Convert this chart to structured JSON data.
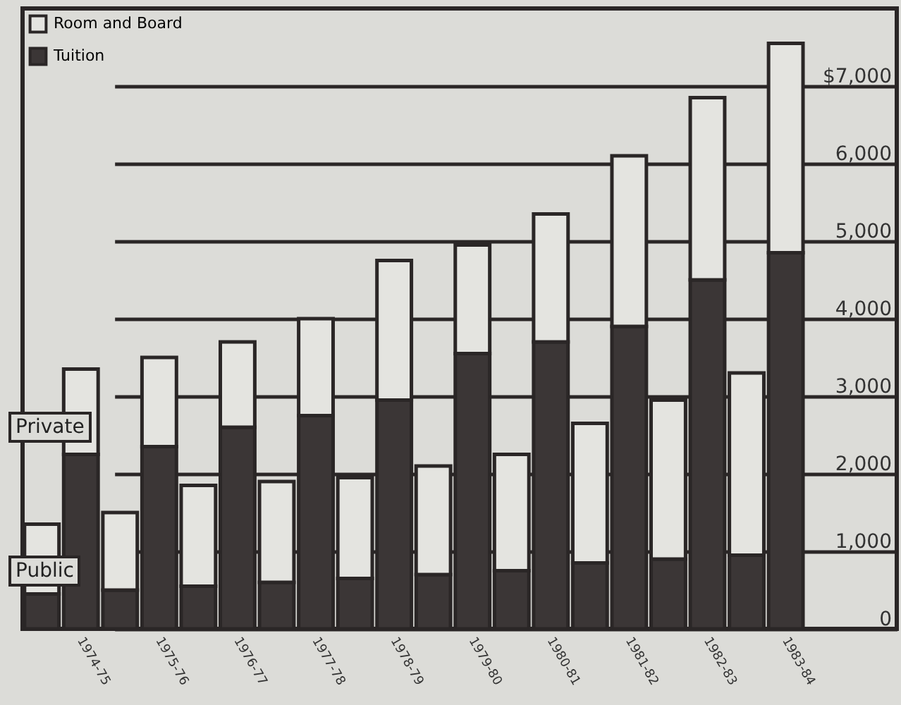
{
  "chart_data": {
    "type": "bar",
    "stacked": true,
    "categories": [
      null,
      "1974-75",
      null,
      "1975-76",
      null,
      "1976-77",
      null,
      "1977-78",
      null,
      "1978-79",
      null,
      "1979-80",
      null,
      "1980-81",
      null,
      "1981-82",
      null,
      "1982-83",
      null,
      "1983-84"
    ],
    "series": [
      {
        "name": "Tuition",
        "color": "#3b3636",
        "values": [
          450,
          2250,
          500,
          2350,
          550,
          2600,
          600,
          2750,
          650,
          2950,
          700,
          3550,
          750,
          3700,
          850,
          3900,
          900,
          4500,
          950,
          4850
        ]
      },
      {
        "name": "Room and Board",
        "color": "#e4e4e0",
        "values": [
          900,
          1100,
          1000,
          1150,
          1300,
          1100,
          1300,
          1250,
          1300,
          1800,
          1400,
          1400,
          1500,
          1650,
          1800,
          2200,
          2050,
          2350,
          2350,
          2700
        ]
      }
    ],
    "ylim": [
      0,
      8000
    ],
    "yticks": [
      0,
      {
        "value": 1000,
        "label": "1,000"
      },
      {
        "value": 2000,
        "label": "2,000"
      },
      {
        "value": 3000,
        "label": "3,000"
      },
      {
        "value": 4000,
        "label": "4,000"
      },
      {
        "value": 5000,
        "label": "5,000"
      },
      {
        "value": 6000,
        "label": "6,000"
      },
      {
        "value": 7000,
        "label": "$7,000"
      }
    ],
    "grid": "y",
    "legend": "top left",
    "annotations": [
      "Private",
      "Public"
    ]
  }
}
